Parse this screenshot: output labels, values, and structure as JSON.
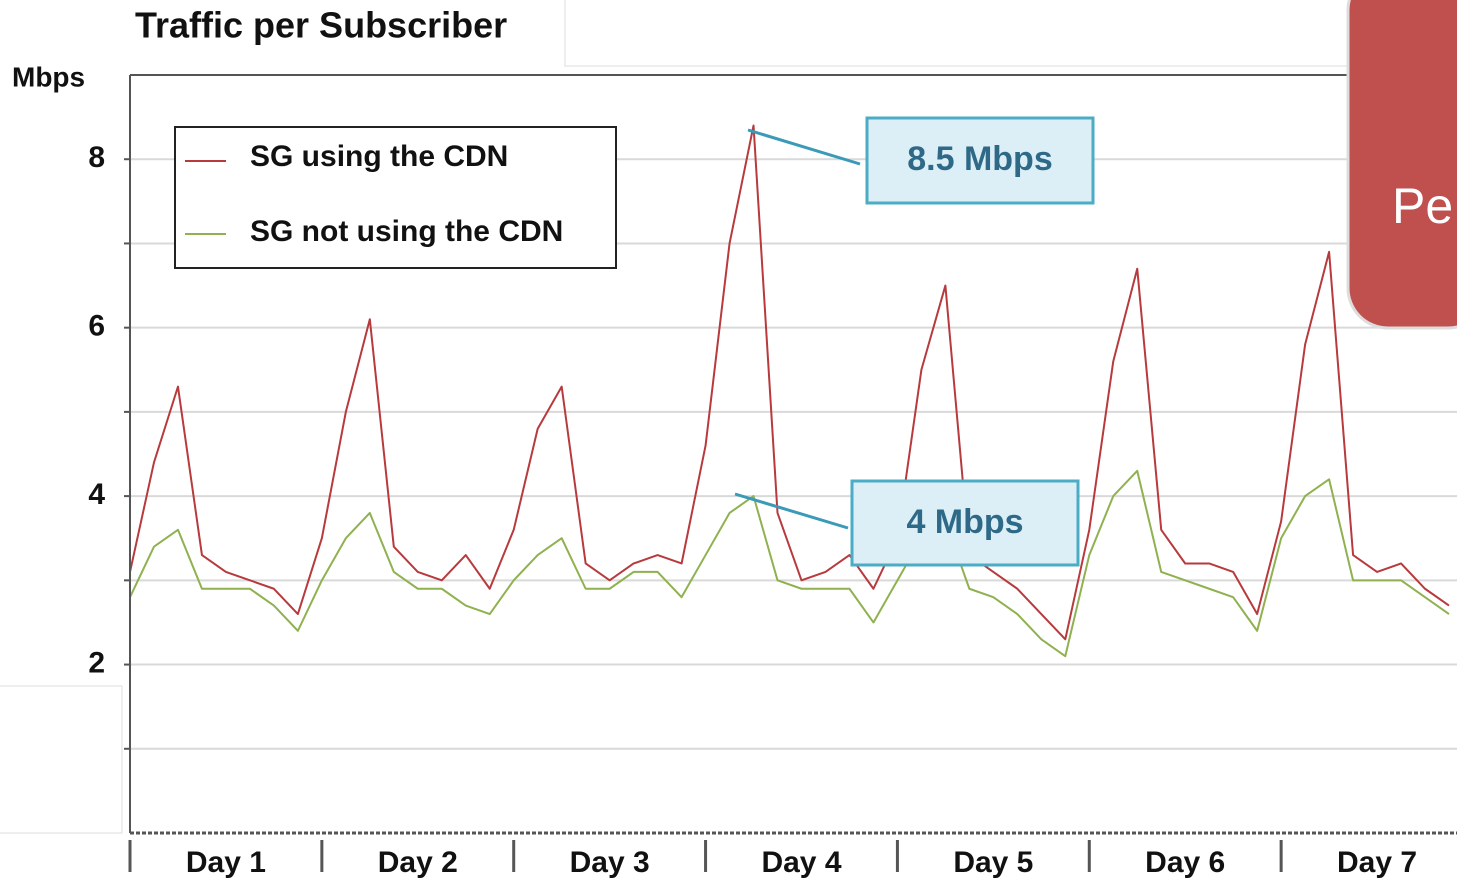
{
  "chart_data": {
    "type": "line",
    "title": "Traffic per Subscriber",
    "y_label": "Mbps",
    "x": [
      0,
      3,
      6,
      9,
      12,
      15,
      18,
      21,
      24,
      27,
      30,
      33,
      36,
      39,
      42,
      45,
      48,
      51,
      54,
      57,
      60,
      63,
      66,
      69,
      72,
      75,
      78,
      81,
      84,
      87,
      90,
      93,
      96,
      99,
      102,
      105,
      108,
      111,
      114,
      117,
      120,
      123,
      126,
      129,
      132,
      135,
      138,
      141,
      144,
      147,
      150,
      153,
      156,
      159,
      162,
      165
    ],
    "series": [
      {
        "name": "SG using the CDN",
        "color": "#b73a3d",
        "values": [
          3.1,
          4.4,
          5.3,
          3.3,
          3.1,
          3.0,
          2.9,
          2.6,
          3.5,
          5.0,
          6.1,
          3.4,
          3.1,
          3.0,
          3.3,
          2.9,
          3.6,
          4.8,
          5.3,
          3.2,
          3.0,
          3.2,
          3.3,
          3.2,
          4.6,
          7.0,
          8.4,
          3.8,
          3.0,
          3.1,
          3.3,
          2.9,
          3.5,
          5.5,
          6.5,
          3.3,
          3.1,
          2.9,
          2.6,
          2.3,
          3.6,
          5.6,
          6.7,
          3.6,
          3.2,
          3.2,
          3.1,
          2.6,
          3.7,
          5.8,
          6.9,
          3.3,
          3.1,
          3.2,
          2.9,
          2.7
        ]
      },
      {
        "name": "SG not using the CDN",
        "color": "#8fb14f",
        "values": [
          2.8,
          3.4,
          3.6,
          2.9,
          2.9,
          2.9,
          2.7,
          2.4,
          3.0,
          3.5,
          3.8,
          3.1,
          2.9,
          2.9,
          2.7,
          2.6,
          3.0,
          3.3,
          3.5,
          2.9,
          2.9,
          3.1,
          3.1,
          2.8,
          3.3,
          3.8,
          4.0,
          3.0,
          2.9,
          2.9,
          2.9,
          2.5,
          3.0,
          3.5,
          3.7,
          2.9,
          2.8,
          2.6,
          2.3,
          2.1,
          3.3,
          4.0,
          4.3,
          3.1,
          3.0,
          2.9,
          2.8,
          2.4,
          3.5,
          4.0,
          4.2,
          3.0,
          3.0,
          3.0,
          2.8,
          2.6
        ]
      }
    ],
    "xlim": [
      0,
      166
    ],
    "day_boundaries": [
      0,
      24,
      48,
      72,
      96,
      120,
      144
    ],
    "xticks": [
      {
        "value": 12,
        "label": "Day 1"
      },
      {
        "value": 36,
        "label": "Day 2"
      },
      {
        "value": 60,
        "label": "Day 3"
      },
      {
        "value": 84,
        "label": "Day 4"
      },
      {
        "value": 108,
        "label": "Day 5"
      },
      {
        "value": 132,
        "label": "Day 6"
      },
      {
        "value": 156,
        "label": "Day 7"
      }
    ],
    "ylim": [
      0,
      9
    ],
    "yticks": [
      2,
      4,
      6,
      8
    ],
    "minor_yticks": [
      1,
      3,
      5,
      7
    ],
    "grid": true,
    "legend": "upper left",
    "annotations": [
      {
        "text": "8.5 Mbps"
      },
      {
        "text": "4 Mbps"
      }
    ]
  },
  "overlay": {
    "text": "Pe"
  }
}
